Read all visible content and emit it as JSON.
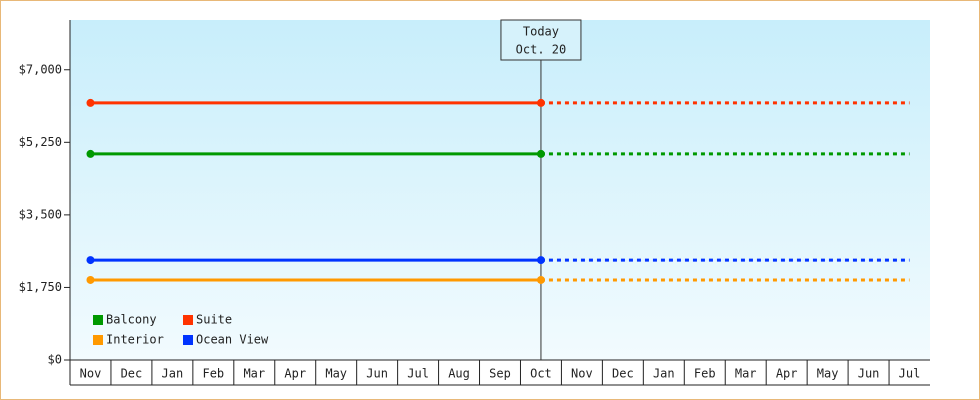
{
  "chart_data": {
    "type": "line",
    "categories": [
      "Nov",
      "Dec",
      "Jan",
      "Feb",
      "Mar",
      "Apr",
      "May",
      "Jun",
      "Jul",
      "Aug",
      "Sep",
      "Oct",
      "Nov",
      "Dec",
      "Jan",
      "Feb",
      "Mar",
      "Apr",
      "May",
      "Jun",
      "Jul"
    ],
    "series": [
      {
        "name": "Balcony",
        "color": "#009900",
        "values": [
          4970,
          4970,
          4970,
          4970,
          4970,
          4970,
          4970,
          4970,
          4970,
          4970,
          4970,
          4970,
          4970,
          4970,
          4970,
          4970,
          4970,
          4970,
          4970,
          4970,
          4970
        ]
      },
      {
        "name": "Suite",
        "color": "#ff3300",
        "values": [
          6200,
          6200,
          6200,
          6200,
          6200,
          6200,
          6200,
          6200,
          6200,
          6200,
          6200,
          6200,
          6200,
          6200,
          6200,
          6200,
          6200,
          6200,
          6200,
          6200,
          6200
        ]
      },
      {
        "name": "Interior",
        "color": "#ff9900",
        "values": [
          1930,
          1930,
          1930,
          1930,
          1930,
          1930,
          1930,
          1930,
          1930,
          1930,
          1930,
          1930,
          1930,
          1930,
          1930,
          1930,
          1930,
          1930,
          1930,
          1930,
          1930
        ]
      },
      {
        "name": "Ocean View",
        "color": "#0033ff",
        "values": [
          2410,
          2410,
          2410,
          2410,
          2410,
          2410,
          2410,
          2410,
          2410,
          2410,
          2410,
          2410,
          2410,
          2410,
          2410,
          2410,
          2410,
          2410,
          2410,
          2410,
          2410
        ]
      }
    ],
    "annotation": {
      "x": "Oct",
      "lines": [
        "Today",
        "Oct. 20"
      ]
    },
    "ylim": [
      0,
      8200
    ],
    "yticks": [
      {
        "value": 0,
        "label": "$0"
      },
      {
        "value": 1750,
        "label": "$1,750"
      },
      {
        "value": 3500,
        "label": "$3,500"
      },
      {
        "value": 5250,
        "label": "$5,250"
      },
      {
        "value": 7000,
        "label": "$7,000"
      }
    ],
    "legend": "lower left"
  }
}
